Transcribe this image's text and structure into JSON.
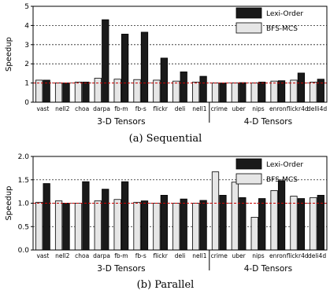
{
  "chart_data": [
    {
      "type": "bar",
      "caption": "(a) Sequential",
      "ylabel": "Speedup",
      "ylim": [
        0,
        5
      ],
      "yticks": [
        0,
        1,
        2,
        3,
        4,
        5
      ],
      "grid": true,
      "baseline": 1,
      "legend_placement": "top-right",
      "categories": [
        "vast",
        "nell2",
        "choa",
        "darpa",
        "fb-m",
        "fb-s",
        "flickr",
        "deli",
        "nell1",
        "crime",
        "uber",
        "nips",
        "enron",
        "flickr4d",
        "delli4d"
      ],
      "groups": [
        {
          "label": "3-D Tensors",
          "count": 9
        },
        {
          "label": "4-D Tensors",
          "count": 6
        }
      ],
      "series": [
        {
          "name": "BFS-MCS",
          "color": "#e6e6e6",
          "values": [
            1.15,
            1.0,
            1.05,
            1.25,
            1.2,
            1.18,
            1.15,
            1.1,
            1.05,
            1.0,
            1.0,
            1.0,
            1.1,
            1.15,
            1.05
          ]
        },
        {
          "name": "Lexi-Order",
          "color": "#1a1a1a",
          "values": [
            1.15,
            1.0,
            1.05,
            4.3,
            3.55,
            3.65,
            2.3,
            1.58,
            1.35,
            1.0,
            1.02,
            1.05,
            1.12,
            1.52,
            1.2
          ]
        }
      ]
    },
    {
      "type": "bar",
      "caption": "(b) Parallel",
      "ylabel": "Speedup",
      "ylim": [
        0,
        2.0
      ],
      "yticks": [
        0.0,
        0.5,
        1.0,
        1.5,
        2.0
      ],
      "grid": true,
      "baseline": 1,
      "legend_placement": "top-right",
      "categories": [
        "vast",
        "nell2",
        "choa",
        "darpa",
        "fb-m",
        "fb-s",
        "flickr",
        "deli",
        "nell1",
        "crime",
        "uber",
        "nips",
        "enron",
        "flickr4d",
        "deli4d"
      ],
      "groups": [
        {
          "label": "3-D Tensors",
          "count": 9
        },
        {
          "label": "4-D Tensors",
          "count": 6
        }
      ],
      "series": [
        {
          "name": "BFS-MCS",
          "color": "#e6e6e6",
          "values": [
            1.02,
            1.05,
            1.0,
            1.05,
            1.08,
            1.02,
            1.0,
            1.0,
            1.0,
            1.67,
            1.45,
            0.7,
            1.27,
            1.15,
            1.12
          ]
        },
        {
          "name": "Lexi-Order",
          "color": "#1a1a1a",
          "values": [
            1.42,
            1.0,
            1.46,
            1.3,
            1.46,
            1.05,
            1.17,
            1.09,
            1.06,
            1.17,
            1.12,
            1.1,
            1.48,
            1.1,
            1.17
          ]
        }
      ]
    }
  ]
}
